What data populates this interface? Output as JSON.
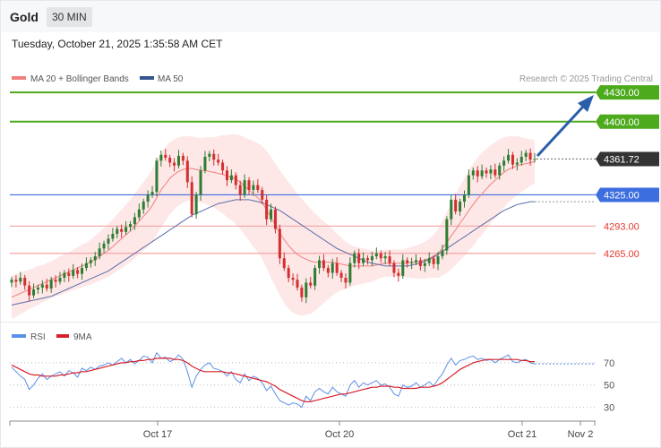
{
  "header": {
    "symbol": "Gold",
    "timeframe": "30 MIN",
    "datetime": "Tuesday, October 21, 2025 1:35:58 AM CET"
  },
  "legend": {
    "ma20": "MA 20 + Bollinger Bands",
    "ma50": "MA 50",
    "credit": "Research © 2025 Trading Central"
  },
  "rsi_legend": {
    "rsi": "RSI",
    "ma": "9MA"
  },
  "colors": {
    "resistance": "#4caa1c",
    "support_pivot": "#3d6ee0",
    "support": "#e6392f",
    "support_line": "#f4a3a3",
    "ma20": "#f08080",
    "ma50": "#5a6fa8",
    "band_fill": "#fde3e3",
    "bull": "#2e7d32",
    "bear": "#d32f2f",
    "rsi": "#5b8fe8",
    "rsi_ma": "#d6202a",
    "arrow": "#2a5ea8",
    "price_tag": "#333333"
  },
  "chart_data": {
    "type": "candlestick",
    "y_range": [
      4195,
      4465
    ],
    "levels": [
      {
        "value": 4430.0,
        "label": "4430.00",
        "kind": "resistance"
      },
      {
        "value": 4400.0,
        "label": "4400.00",
        "kind": "resistance"
      },
      {
        "value": 4361.72,
        "label": "4361.72",
        "kind": "last"
      },
      {
        "value": 4325.0,
        "label": "4325.00",
        "kind": "pivot"
      },
      {
        "value": 4293.0,
        "label": "4293.00",
        "kind": "support"
      },
      {
        "value": 4265.0,
        "label": "4265.00",
        "kind": "support"
      }
    ],
    "x_labels": [
      "Oct 17",
      "Oct 20",
      "Oct 21",
      "Nov 2"
    ],
    "closes": [
      4238,
      4236,
      4240,
      4232,
      4222,
      4228,
      4230,
      4233,
      4229,
      4238,
      4236,
      4240,
      4245,
      4242,
      4248,
      4244,
      4250,
      4255,
      4258,
      4262,
      4270,
      4275,
      4280,
      4285,
      4290,
      4287,
      4292,
      4295,
      4302,
      4310,
      4318,
      4325,
      4328,
      4360,
      4366,
      4363,
      4358,
      4355,
      4365,
      4360,
      4338,
      4305,
      4325,
      4350,
      4364,
      4367,
      4361,
      4358,
      4350,
      4340,
      4345,
      4335,
      4325,
      4340,
      4330,
      4335,
      4330,
      4320,
      4300,
      4310,
      4290,
      4260,
      4250,
      4240,
      4238,
      4230,
      4220,
      4235,
      4232,
      4250,
      4258,
      4250,
      4245,
      4255,
      4245,
      4240,
      4235,
      4255,
      4265,
      4255,
      4260,
      4258,
      4262,
      4265,
      4260,
      4262,
      4255,
      4245,
      4242,
      4258,
      4255,
      4256,
      4258,
      4252,
      4255,
      4260,
      4254,
      4262,
      4268,
      4300,
      4320,
      4308,
      4318,
      4325,
      4345,
      4350,
      4344,
      4350,
      4347,
      4351,
      4345,
      4355,
      4360,
      4366,
      4356,
      4358,
      4364,
      4368,
      4361,
      4361.72
    ],
    "ma20": [
      4220,
      4222,
      4224,
      4226,
      4228,
      4230,
      4232,
      4234,
      4236,
      4238,
      4240,
      4242,
      4244,
      4246,
      4248,
      4250,
      4252,
      4254,
      4256,
      4259,
      4262,
      4265,
      4268,
      4272,
      4276,
      4280,
      4284,
      4288,
      4293,
      4298,
      4303,
      4308,
      4314,
      4322,
      4330,
      4336,
      4342,
      4346,
      4349,
      4351,
      4352,
      4352,
      4351,
      4350,
      4350,
      4349,
      4348,
      4347,
      4346,
      4344,
      4343,
      4341,
      4338,
      4334,
      4330,
      4326,
      4322,
      4317,
      4310,
      4302,
      4294,
      4286,
      4279,
      4273,
      4268,
      4264,
      4261,
      4259,
      4257,
      4256,
      4256,
      4256,
      4256,
      4256,
      4255,
      4254,
      4253,
      4252,
      4252,
      4252,
      4252,
      4252,
      4252,
      4253,
      4254,
      4255,
      4255,
      4255,
      4255,
      4255,
      4255,
      4256,
      4256,
      4257,
      4258,
      4260,
      4262,
      4265,
      4270,
      4276,
      4283,
      4289,
      4296,
      4302,
      4309,
      4315,
      4321,
      4326,
      4331,
      4336,
      4340,
      4344,
      4348,
      4351,
      4353,
      4355,
      4356,
      4357,
      4358,
      4359
    ],
    "ma50": [
      4212,
      4213,
      4214,
      4215,
      4216,
      4217,
      4218,
      4219,
      4220,
      4221,
      4223,
      4225,
      4227,
      4229,
      4231,
      4233,
      4235,
      4237,
      4239,
      4241,
      4243,
      4245,
      4247,
      4250,
      4253,
      4256,
      4259,
      4262,
      4265,
      4268,
      4271,
      4274,
      4277,
      4280,
      4283,
      4286,
      4289,
      4292,
      4295,
      4298,
      4301,
      4304,
      4306,
      4308,
      4310,
      4312,
      4314,
      4316,
      4317,
      4318,
      4319,
      4320,
      4320,
      4320,
      4320,
      4319,
      4318,
      4317,
      4315,
      4313,
      4311,
      4309,
      4306,
      4303,
      4300,
      4297,
      4294,
      4291,
      4288,
      4285,
      4282,
      4279,
      4276,
      4273,
      4270,
      4268,
      4266,
      4264,
      4262,
      4260,
      4258,
      4256,
      4255,
      4254,
      4253,
      4252,
      4252,
      4252,
      4252,
      4252,
      4252,
      4253,
      4254,
      4255,
      4257,
      4259,
      4261,
      4264,
      4267,
      4270,
      4273,
      4276,
      4279,
      4282,
      4285,
      4288,
      4291,
      4294,
      4297,
      4300,
      4303,
      4306,
      4309,
      4311,
      4313,
      4315,
      4316,
      4317,
      4318,
      4318
    ],
    "bb_halfwidth": [
      22,
      22,
      21,
      21,
      20,
      20,
      20,
      19,
      19,
      19,
      19,
      20,
      20,
      20,
      21,
      21,
      22,
      22,
      23,
      24,
      25,
      26,
      27,
      28,
      29,
      30,
      31,
      32,
      33,
      34,
      35,
      36,
      37,
      38,
      38,
      38,
      37,
      36,
      35,
      34,
      33,
      33,
      33,
      33,
      34,
      35,
      36,
      38,
      40,
      42,
      44,
      46,
      48,
      50,
      52,
      54,
      56,
      58,
      60,
      62,
      63,
      64,
      65,
      65,
      64,
      62,
      60,
      57,
      54,
      50,
      46,
      42,
      38,
      34,
      30,
      27,
      24,
      22,
      20,
      19,
      18,
      17,
      16,
      15,
      14,
      14,
      14,
      14,
      14,
      14,
      15,
      16,
      17,
      18,
      19,
      20,
      22,
      25,
      28,
      31,
      34,
      36,
      38,
      40,
      41,
      42,
      42,
      42,
      41,
      40,
      39,
      38,
      36,
      34,
      32,
      30,
      28,
      26,
      24,
      22
    ],
    "rsi": [
      66,
      62,
      58,
      55,
      46,
      50,
      56,
      60,
      55,
      58,
      60,
      62,
      58,
      63,
      61,
      57,
      65,
      63,
      66,
      64,
      67,
      68,
      70,
      68,
      71,
      74,
      70,
      73,
      69,
      72,
      76,
      75,
      70,
      79,
      74,
      75,
      71,
      73,
      77,
      73,
      62,
      48,
      58,
      64,
      68,
      70,
      65,
      64,
      62,
      58,
      62,
      55,
      52,
      60,
      54,
      58,
      56,
      52,
      45,
      49,
      42,
      36,
      34,
      32,
      34,
      33,
      30,
      40,
      36,
      44,
      47,
      44,
      42,
      48,
      44,
      42,
      40,
      50,
      54,
      48,
      52,
      50,
      52,
      54,
      50,
      51,
      48,
      42,
      40,
      50,
      48,
      49,
      52,
      48,
      50,
      53,
      49,
      55,
      60,
      68,
      74,
      68,
      72,
      73,
      75,
      76,
      73,
      74,
      72,
      73,
      70,
      73,
      75,
      77,
      71,
      70,
      72,
      73,
      70,
      69
    ],
    "rsi_ma": [
      68,
      66,
      64,
      62,
      60,
      59,
      59,
      58,
      58,
      58,
      58,
      59,
      59,
      60,
      61,
      61,
      62,
      62,
      63,
      64,
      65,
      66,
      67,
      68,
      69,
      70,
      70,
      71,
      71,
      72,
      72,
      73,
      73,
      74,
      74,
      74,
      74,
      73,
      73,
      72,
      70,
      67,
      65,
      63,
      62,
      62,
      62,
      62,
      62,
      61,
      61,
      60,
      59,
      58,
      57,
      56,
      55,
      54,
      53,
      51,
      49,
      46,
      44,
      42,
      40,
      38,
      36,
      35,
      35,
      36,
      37,
      38,
      39,
      40,
      41,
      42,
      42,
      43,
      44,
      45,
      46,
      47,
      48,
      48,
      49,
      49,
      49,
      48,
      48,
      47,
      47,
      47,
      47,
      48,
      48,
      48,
      49,
      50,
      52,
      55,
      58,
      61,
      64,
      66,
      68,
      70,
      71,
      72,
      73,
      73,
      73,
      73,
      73,
      73,
      73,
      73,
      72,
      72,
      71,
      71
    ],
    "rsi_ticks": [
      70,
      50,
      30
    ],
    "rsi_range": [
      20,
      86
    ]
  }
}
